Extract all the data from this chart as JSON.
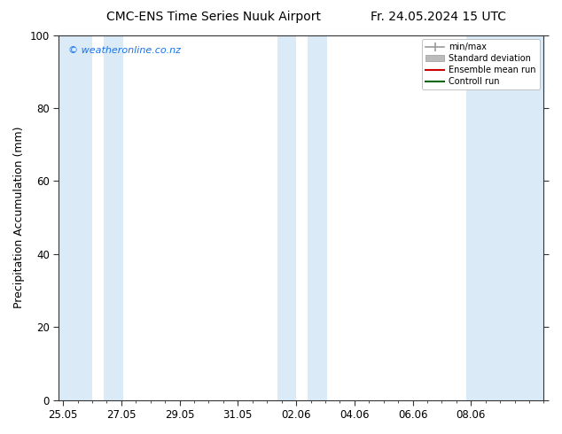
{
  "title_left": "CMC-ENS Time Series Nuuk Airport",
  "title_right": "Fr. 24.05.2024 15 UTC",
  "ylabel": "Precipitation Accumulation (mm)",
  "ylim": [
    0,
    100
  ],
  "yticks": [
    0,
    20,
    40,
    60,
    80,
    100
  ],
  "bg_color": "#ffffff",
  "plot_bg_color": "#ffffff",
  "watermark": "© weatheronline.co.nz",
  "watermark_color": "#1a73e8",
  "xtick_labels": [
    "25.05",
    "27.05",
    "29.05",
    "31.05",
    "02.06",
    "04.06",
    "06.06",
    "08.06"
  ],
  "xtick_positions": [
    0,
    2,
    4,
    6,
    8,
    10,
    12,
    14
  ],
  "xlim": [
    -0.15,
    16.5
  ],
  "shaded_bands": [
    [
      -0.15,
      1.0
    ],
    [
      1.4,
      2.05
    ],
    [
      7.35,
      8.0
    ],
    [
      8.4,
      9.05
    ],
    [
      13.85,
      16.5
    ]
  ],
  "shaded_color": "#daeaf7",
  "legend_entries": [
    {
      "label": "min/max",
      "color": "#999999"
    },
    {
      "label": "Standard deviation",
      "color": "#bbbbbb"
    },
    {
      "label": "Ensemble mean run",
      "color": "#cc0000"
    },
    {
      "label": "Controll run",
      "color": "#006600"
    }
  ],
  "spine_color": "#333333",
  "tick_color": "#333333",
  "title_fontsize": 10,
  "label_fontsize": 9,
  "tick_fontsize": 8.5
}
